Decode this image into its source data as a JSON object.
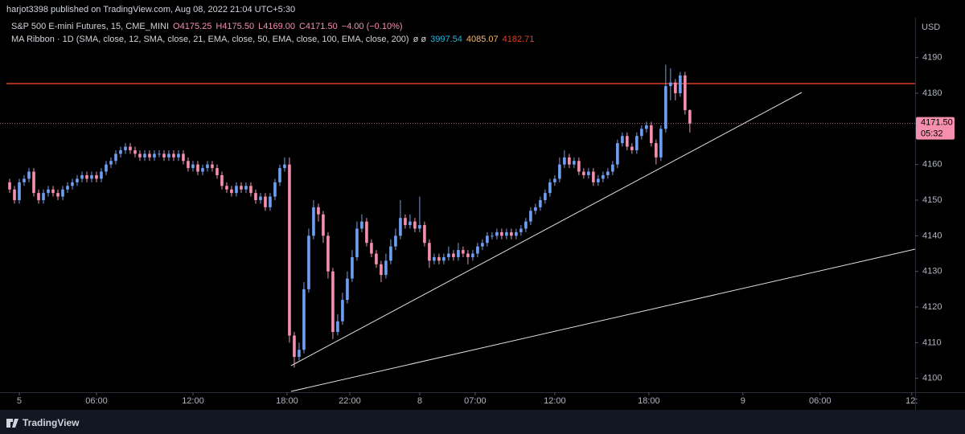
{
  "header": {
    "published": "harjot3398 published on TradingView.com, Aug 08, 2022 21:04 UTC+5:30",
    "symbol": "S&P 500 E-mini Futures, 15, CME_MINI",
    "open": "O4175.25",
    "high": "H4175.50",
    "low": "L4169.00",
    "close": "C4171.50",
    "change": "−4.00 (−0.10%)",
    "ma_label": "MA Ribbon · 1D (SMA, close, 12, SMA, close, 21, EMA, close, 50, EMA, close, 100, EMA, close, 200)",
    "ma_extra": "ø ø",
    "currency": "USD",
    "brand": "TradingView"
  },
  "chart_data": {
    "type": "candlestick",
    "up_color": "#6f9ff0",
    "down_color": "#f490ad",
    "ma_values": [
      3997.54,
      4085.07,
      4182.71
    ],
    "ma_colors": [
      "#22b5d8",
      "#f5b76c",
      "#e0411f"
    ],
    "last_label": "4171.50",
    "countdown": "05:32",
    "ylim": [
      4096.1,
      4201.2
    ],
    "yticks": [
      4100,
      4110,
      4120,
      4130,
      4140,
      4150,
      4160,
      4170,
      4180,
      4190
    ],
    "xlim": [
      -2,
      187.7
    ],
    "xticks": [
      {
        "value": 2,
        "label": "5"
      },
      {
        "value": 18,
        "label": "06:00"
      },
      {
        "value": 38,
        "label": "12:00"
      },
      {
        "value": 57.5,
        "label": "18:00"
      },
      {
        "value": 70.5,
        "label": "22:00"
      },
      {
        "value": 85,
        "label": "8"
      },
      {
        "value": 96.5,
        "label": "07:00"
      },
      {
        "value": 113,
        "label": "12:00"
      },
      {
        "value": 132.5,
        "label": "18:00"
      },
      {
        "value": 152,
        "label": "9"
      },
      {
        "value": 168,
        "label": "06:00"
      },
      {
        "value": 187,
        "label": "12:"
      }
    ],
    "candles": [
      [
        4155,
        4156,
        4152,
        4153
      ],
      [
        4153,
        4154,
        4149,
        4150
      ],
      [
        4150,
        4156,
        4149,
        4155
      ],
      [
        4155,
        4157,
        4154,
        4156
      ],
      [
        4156,
        4159,
        4155,
        4158
      ],
      [
        4158,
        4159,
        4151,
        4152
      ],
      [
        4152,
        4153,
        4149,
        4150
      ],
      [
        4150,
        4153,
        4149,
        4152
      ],
      [
        4152,
        4154,
        4151,
        4153
      ],
      [
        4153,
        4154,
        4151,
        4152
      ],
      [
        4152,
        4153,
        4150,
        4151
      ],
      [
        4151,
        4154,
        4150,
        4153
      ],
      [
        4153,
        4155,
        4152,
        4154
      ],
      [
        4154,
        4156,
        4153,
        4155
      ],
      [
        4155,
        4157,
        4154,
        4156
      ],
      [
        4156,
        4158,
        4155,
        4157
      ],
      [
        4157,
        4158,
        4155,
        4156
      ],
      [
        4156,
        4158,
        4155,
        4157
      ],
      [
        4157,
        4158,
        4155,
        4156
      ],
      [
        4156,
        4159,
        4155,
        4158
      ],
      [
        4158,
        4161,
        4157,
        4160
      ],
      [
        4160,
        4162,
        4159,
        4161
      ],
      [
        4161,
        4164,
        4160,
        4163
      ],
      [
        4163,
        4165,
        4162,
        4164
      ],
      [
        4164,
        4166,
        4163,
        4165
      ],
      [
        4165,
        4166,
        4163,
        4164
      ],
      [
        4164,
        4165,
        4162,
        4163
      ],
      [
        4163,
        4164,
        4161,
        4162
      ],
      [
        4162,
        4164,
        4161,
        4163
      ],
      [
        4163,
        4164,
        4161,
        4162
      ],
      [
        4162,
        4164,
        4161,
        4163
      ],
      [
        4163,
        4164,
        4162,
        4163
      ],
      [
        4163,
        4164,
        4161,
        4162
      ],
      [
        4162,
        4164,
        4161,
        4163
      ],
      [
        4163,
        4164,
        4161,
        4162
      ],
      [
        4162,
        4164,
        4161,
        4163
      ],
      [
        4163,
        4164,
        4160,
        4161
      ],
      [
        4161,
        4162,
        4158,
        4159
      ],
      [
        4159,
        4161,
        4158,
        4160
      ],
      [
        4160,
        4161,
        4157,
        4158
      ],
      [
        4158,
        4160,
        4157,
        4159
      ],
      [
        4159,
        4161,
        4158,
        4160
      ],
      [
        4160,
        4161,
        4158,
        4159
      ],
      [
        4159,
        4160,
        4156,
        4157
      ],
      [
        4157,
        4158,
        4153,
        4154
      ],
      [
        4154,
        4155,
        4152,
        4153
      ],
      [
        4153,
        4154,
        4151,
        4152
      ],
      [
        4152,
        4155,
        4151,
        4154
      ],
      [
        4154,
        4155,
        4152,
        4153
      ],
      [
        4153,
        4155,
        4152,
        4154
      ],
      [
        4154,
        4155,
        4151,
        4152
      ],
      [
        4152,
        4153,
        4149,
        4150
      ],
      [
        4150,
        4152,
        4149,
        4151
      ],
      [
        4151,
        4152,
        4147,
        4148
      ],
      [
        4148,
        4152,
        4147,
        4151
      ],
      [
        4151,
        4156,
        4150,
        4155
      ],
      [
        4155,
        4160,
        4154,
        4159
      ],
      [
        4159,
        4162,
        4158,
        4160
      ],
      [
        4160,
        4162,
        4110,
        4112
      ],
      [
        4112,
        4113,
        4103,
        4106
      ],
      [
        4106,
        4110,
        4105,
        4108
      ],
      [
        4108,
        4127,
        4107,
        4125
      ],
      [
        4125,
        4142,
        4124,
        4140
      ],
      [
        4140,
        4150,
        4139,
        4148
      ],
      [
        4148,
        4149,
        4144,
        4146
      ],
      [
        4146,
        4147,
        4138,
        4140
      ],
      [
        4140,
        4141,
        4128,
        4130
      ],
      [
        4130,
        4131,
        4111,
        4113
      ],
      [
        4113,
        4118,
        4112,
        4116
      ],
      [
        4116,
        4124,
        4115,
        4122
      ],
      [
        4122,
        4130,
        4121,
        4128
      ],
      [
        4128,
        4136,
        4127,
        4134
      ],
      [
        4134,
        4144,
        4133,
        4142
      ],
      [
        4142,
        4146,
        4141,
        4144
      ],
      [
        4144,
        4145,
        4137,
        4138
      ],
      [
        4138,
        4139,
        4134,
        4135
      ],
      [
        4135,
        4136,
        4131,
        4132
      ],
      [
        4132,
        4133,
        4127,
        4129
      ],
      [
        4129,
        4135,
        4128,
        4133
      ],
      [
        4133,
        4139,
        4132,
        4137
      ],
      [
        4137,
        4142,
        4136,
        4140
      ],
      [
        4140,
        4150,
        4139,
        4145
      ],
      [
        4145,
        4146,
        4142,
        4143
      ],
      [
        4143,
        4146,
        4142,
        4144
      ],
      [
        4144,
        4145,
        4141,
        4142
      ],
      [
        4142,
        4151,
        4141,
        4143
      ],
      [
        4143,
        4144,
        4137,
        4138
      ],
      [
        4138,
        4139,
        4131,
        4133
      ],
      [
        4133,
        4135,
        4132,
        4134
      ],
      [
        4134,
        4135,
        4132,
        4133
      ],
      [
        4133,
        4135,
        4132,
        4134
      ],
      [
        4134,
        4137,
        4133,
        4135
      ],
      [
        4135,
        4136,
        4133,
        4134
      ],
      [
        4134,
        4138,
        4133,
        4136
      ],
      [
        4136,
        4137,
        4134,
        4135
      ],
      [
        4135,
        4136,
        4132,
        4134
      ],
      [
        4134,
        4136,
        4133,
        4135
      ],
      [
        4135,
        4138,
        4134,
        4137
      ],
      [
        4137,
        4139,
        4136,
        4138
      ],
      [
        4138,
        4141,
        4137,
        4140
      ],
      [
        4140,
        4141,
        4139,
        4140
      ],
      [
        4140,
        4142,
        4139,
        4141
      ],
      [
        4141,
        4142,
        4139,
        4140
      ],
      [
        4140,
        4142,
        4139,
        4141
      ],
      [
        4141,
        4142,
        4139,
        4140
      ],
      [
        4140,
        4142,
        4139,
        4141
      ],
      [
        4141,
        4143,
        4140,
        4142
      ],
      [
        4142,
        4145,
        4141,
        4144
      ],
      [
        4144,
        4148,
        4143,
        4147
      ],
      [
        4147,
        4149,
        4146,
        4148
      ],
      [
        4148,
        4151,
        4147,
        4150
      ],
      [
        4150,
        4153,
        4149,
        4152
      ],
      [
        4152,
        4156,
        4151,
        4155
      ],
      [
        4155,
        4157,
        4154,
        4156
      ],
      [
        4156,
        4162,
        4155,
        4160
      ],
      [
        4160,
        4164,
        4159,
        4162
      ],
      [
        4162,
        4163,
        4159,
        4160
      ],
      [
        4160,
        4162,
        4159,
        4161
      ],
      [
        4161,
        4162,
        4157,
        4158
      ],
      [
        4158,
        4159,
        4156,
        4157
      ],
      [
        4157,
        4159,
        4156,
        4158
      ],
      [
        4158,
        4159,
        4154,
        4155
      ],
      [
        4155,
        4157,
        4154,
        4156
      ],
      [
        4156,
        4158,
        4155,
        4157
      ],
      [
        4157,
        4159,
        4156,
        4158
      ],
      [
        4158,
        4161,
        4157,
        4160
      ],
      [
        4160,
        4167,
        4159,
        4166
      ],
      [
        4166,
        4169,
        4165,
        4168
      ],
      [
        4168,
        4169,
        4164,
        4165
      ],
      [
        4165,
        4166,
        4163,
        4164
      ],
      [
        4164,
        4169,
        4163,
        4168
      ],
      [
        4168,
        4171,
        4167,
        4170
      ],
      [
        4170,
        4172,
        4169,
        4171
      ],
      [
        4171,
        4172,
        4165,
        4166
      ],
      [
        4166,
        4167,
        4160,
        4162
      ],
      [
        4162,
        4171,
        4161,
        4170
      ],
      [
        4170,
        4188,
        4169,
        4182
      ],
      [
        4182,
        4187,
        4178,
        4183
      ],
      [
        4183,
        4184,
        4178,
        4180
      ],
      [
        4180,
        4186,
        4179,
        4185
      ],
      [
        4185,
        4186,
        4174,
        4175.25
      ],
      [
        4175.25,
        4175.5,
        4169,
        4171.5
      ]
    ]
  }
}
